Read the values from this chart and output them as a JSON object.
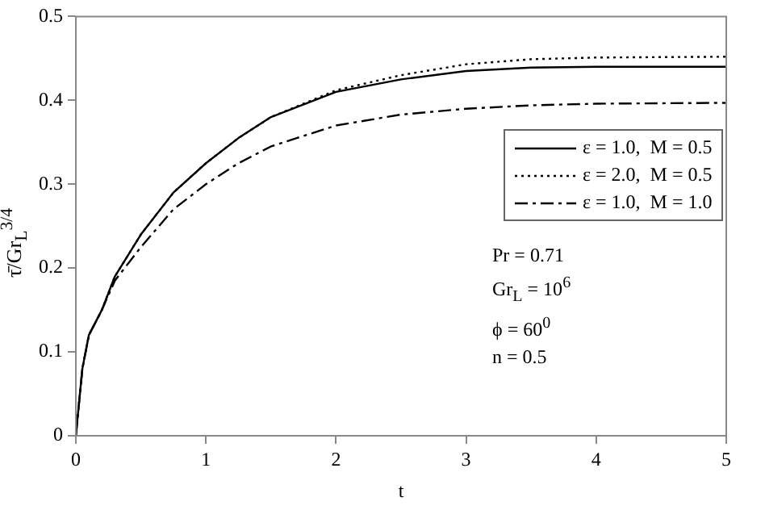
{
  "chart_data": {
    "type": "line",
    "xlabel": "t",
    "ylabel": "τ̄/Gr$_{L}$$^{3/4}$",
    "x": [
      0,
      0.05,
      0.1,
      0.2,
      0.3,
      0.5,
      0.75,
      1,
      1.25,
      1.5,
      2,
      2.5,
      3,
      3.5,
      4,
      5
    ],
    "series": [
      {
        "name": "ε = 1.0,  M = 0.5",
        "color": "#000000",
        "line_style": "solid",
        "values": [
          0,
          0.08,
          0.12,
          0.15,
          0.19,
          0.24,
          0.29,
          0.325,
          0.355,
          0.38,
          0.41,
          0.425,
          0.435,
          0.439,
          0.44,
          0.44
        ]
      },
      {
        "name": "ε = 2.0,  M = 0.5",
        "color": "#000000",
        "line_style": "dotted",
        "values": [
          0,
          0.08,
          0.12,
          0.15,
          0.19,
          0.24,
          0.29,
          0.325,
          0.355,
          0.38,
          0.412,
          0.43,
          0.443,
          0.449,
          0.451,
          0.452
        ]
      },
      {
        "name": "ε = 1.0,  M = 1.0",
        "color": "#000000",
        "line_style": "dashed",
        "values": [
          0,
          0.08,
          0.12,
          0.15,
          0.185,
          0.225,
          0.27,
          0.3,
          0.325,
          0.345,
          0.37,
          0.383,
          0.39,
          0.394,
          0.396,
          0.397
        ]
      }
    ],
    "xlim": [
      0,
      5
    ],
    "xticks": [
      0,
      1,
      2,
      3,
      4,
      5
    ],
    "ylim": [
      0,
      0.5
    ],
    "yticks": [
      0,
      0.1,
      0.2,
      0.3,
      0.4,
      0.5
    ],
    "grid": false,
    "legend": "right",
    "marker": "none",
    "annotations": [
      "Pr = 0.71",
      "Gr$_{L}$ = 10$^{6}$",
      "ϕ = 60$^{0}$",
      "n = 0.5"
    ]
  }
}
